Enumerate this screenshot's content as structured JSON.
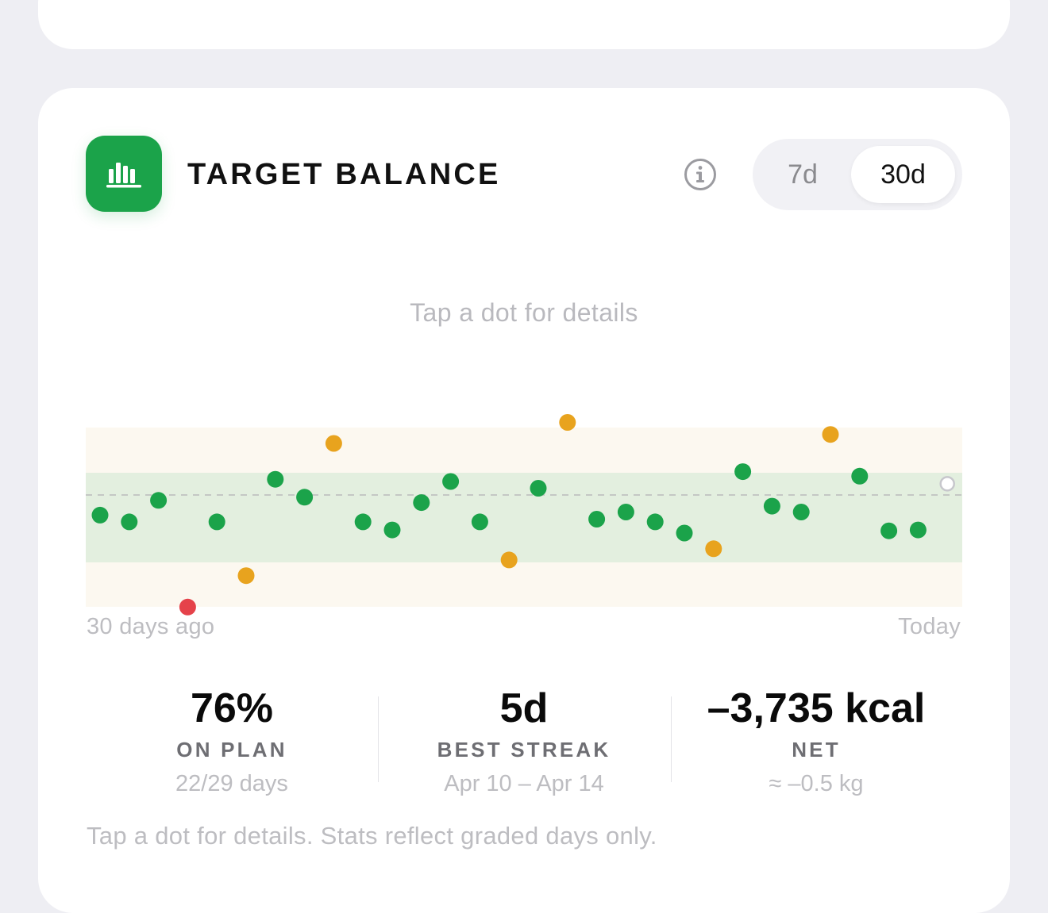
{
  "card": {
    "title": "TARGET BALANCE",
    "icon": "bar-chart-icon",
    "accent": "#1BA34A",
    "info_icon": "info-circle-icon",
    "range_options": [
      {
        "label": "7d",
        "selected": false
      },
      {
        "label": "30d",
        "selected": true
      }
    ]
  },
  "chart": {
    "hint": "Tap a dot for details",
    "x_start_label": "30 days ago",
    "x_end_label": "Today"
  },
  "chart_data": {
    "type": "scatter",
    "x_labels": [
      "30 days ago",
      "Today"
    ],
    "y_units": "deviation from target (relative)",
    "band": {
      "inner": [
        -1,
        1
      ],
      "outer": [
        -2,
        2
      ]
    },
    "ylim": [
      -2.6,
      2.6
    ],
    "status_colors": {
      "on": "#1BA34A",
      "near": "#E8A31E",
      "off": "#E5424A",
      "pending": "#C7C7CC"
    },
    "points": [
      {
        "day": 1,
        "value": -0.45,
        "status": "on"
      },
      {
        "day": 2,
        "value": -0.6,
        "status": "on"
      },
      {
        "day": 3,
        "value": -0.12,
        "status": "on"
      },
      {
        "day": 4,
        "value": -2.5,
        "status": "off"
      },
      {
        "day": 5,
        "value": -0.6,
        "status": "on"
      },
      {
        "day": 6,
        "value": -1.8,
        "status": "near"
      },
      {
        "day": 7,
        "value": 0.35,
        "status": "on"
      },
      {
        "day": 8,
        "value": -0.05,
        "status": "on"
      },
      {
        "day": 9,
        "value": 1.15,
        "status": "near"
      },
      {
        "day": 10,
        "value": -0.6,
        "status": "on"
      },
      {
        "day": 11,
        "value": -0.78,
        "status": "on"
      },
      {
        "day": 12,
        "value": -0.17,
        "status": "on"
      },
      {
        "day": 13,
        "value": 0.3,
        "status": "on"
      },
      {
        "day": 14,
        "value": -0.6,
        "status": "on"
      },
      {
        "day": 15,
        "value": -1.45,
        "status": "near"
      },
      {
        "day": 16,
        "value": 0.15,
        "status": "on"
      },
      {
        "day": 17,
        "value": 1.62,
        "status": "near"
      },
      {
        "day": 18,
        "value": -0.54,
        "status": "on"
      },
      {
        "day": 19,
        "value": -0.38,
        "status": "on"
      },
      {
        "day": 20,
        "value": -0.6,
        "status": "on"
      },
      {
        "day": 21,
        "value": -0.85,
        "status": "on"
      },
      {
        "day": 22,
        "value": -1.2,
        "status": "near"
      },
      {
        "day": 23,
        "value": 0.52,
        "status": "on"
      },
      {
        "day": 24,
        "value": -0.25,
        "status": "on"
      },
      {
        "day": 25,
        "value": -0.38,
        "status": "on"
      },
      {
        "day": 26,
        "value": 1.35,
        "status": "near"
      },
      {
        "day": 27,
        "value": 0.42,
        "status": "on"
      },
      {
        "day": 28,
        "value": -0.8,
        "status": "on"
      },
      {
        "day": 29,
        "value": -0.78,
        "status": "on"
      },
      {
        "day": 30,
        "value": 0.25,
        "status": "pending"
      }
    ]
  },
  "stats": [
    {
      "value": "76%",
      "label": "ON PLAN",
      "sub": "22/29 days"
    },
    {
      "value": "5d",
      "label": "BEST STREAK",
      "sub": "Apr 10 – Apr 14"
    },
    {
      "value": "–3,735 kcal",
      "label": "NET",
      "sub": "≈ –0.5 kg"
    }
  ],
  "footnote": "Tap a dot for details. Stats reflect graded days only."
}
